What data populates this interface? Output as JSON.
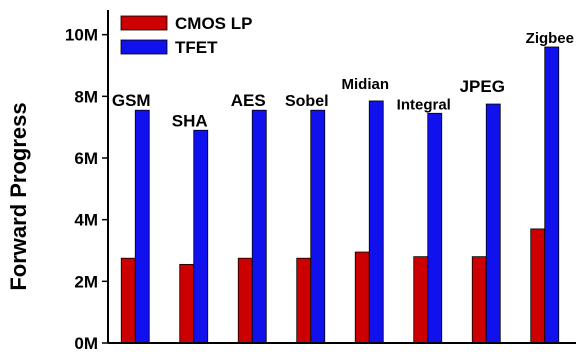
{
  "chart_data": {
    "type": "bar",
    "ylabel": "Forward Progress",
    "ylim": [
      0,
      10800000
    ],
    "yticks": [
      {
        "value": 0,
        "label": "0M"
      },
      {
        "value": 2000000,
        "label": "2M"
      },
      {
        "value": 4000000,
        "label": "4M"
      },
      {
        "value": 6000000,
        "label": "6M"
      },
      {
        "value": 8000000,
        "label": "8M"
      },
      {
        "value": 10000000,
        "label": "10M"
      }
    ],
    "categories": [
      "GSM",
      "SHA",
      "AES",
      "Sobel",
      "Midian",
      "Integral",
      "JPEG",
      "Zigbee"
    ],
    "series": [
      {
        "name": "CMOS LP",
        "color": "#cc0000",
        "values": [
          2750000,
          2550000,
          2750000,
          2750000,
          2950000,
          2800000,
          2800000,
          3700000
        ]
      },
      {
        "name": "TFET",
        "color": "#1111ee",
        "values": [
          7550000,
          6900000,
          7550000,
          7550000,
          7850000,
          7450000,
          7750000,
          9600000
        ]
      }
    ],
    "legend_position": "top-left",
    "grid": false
  }
}
